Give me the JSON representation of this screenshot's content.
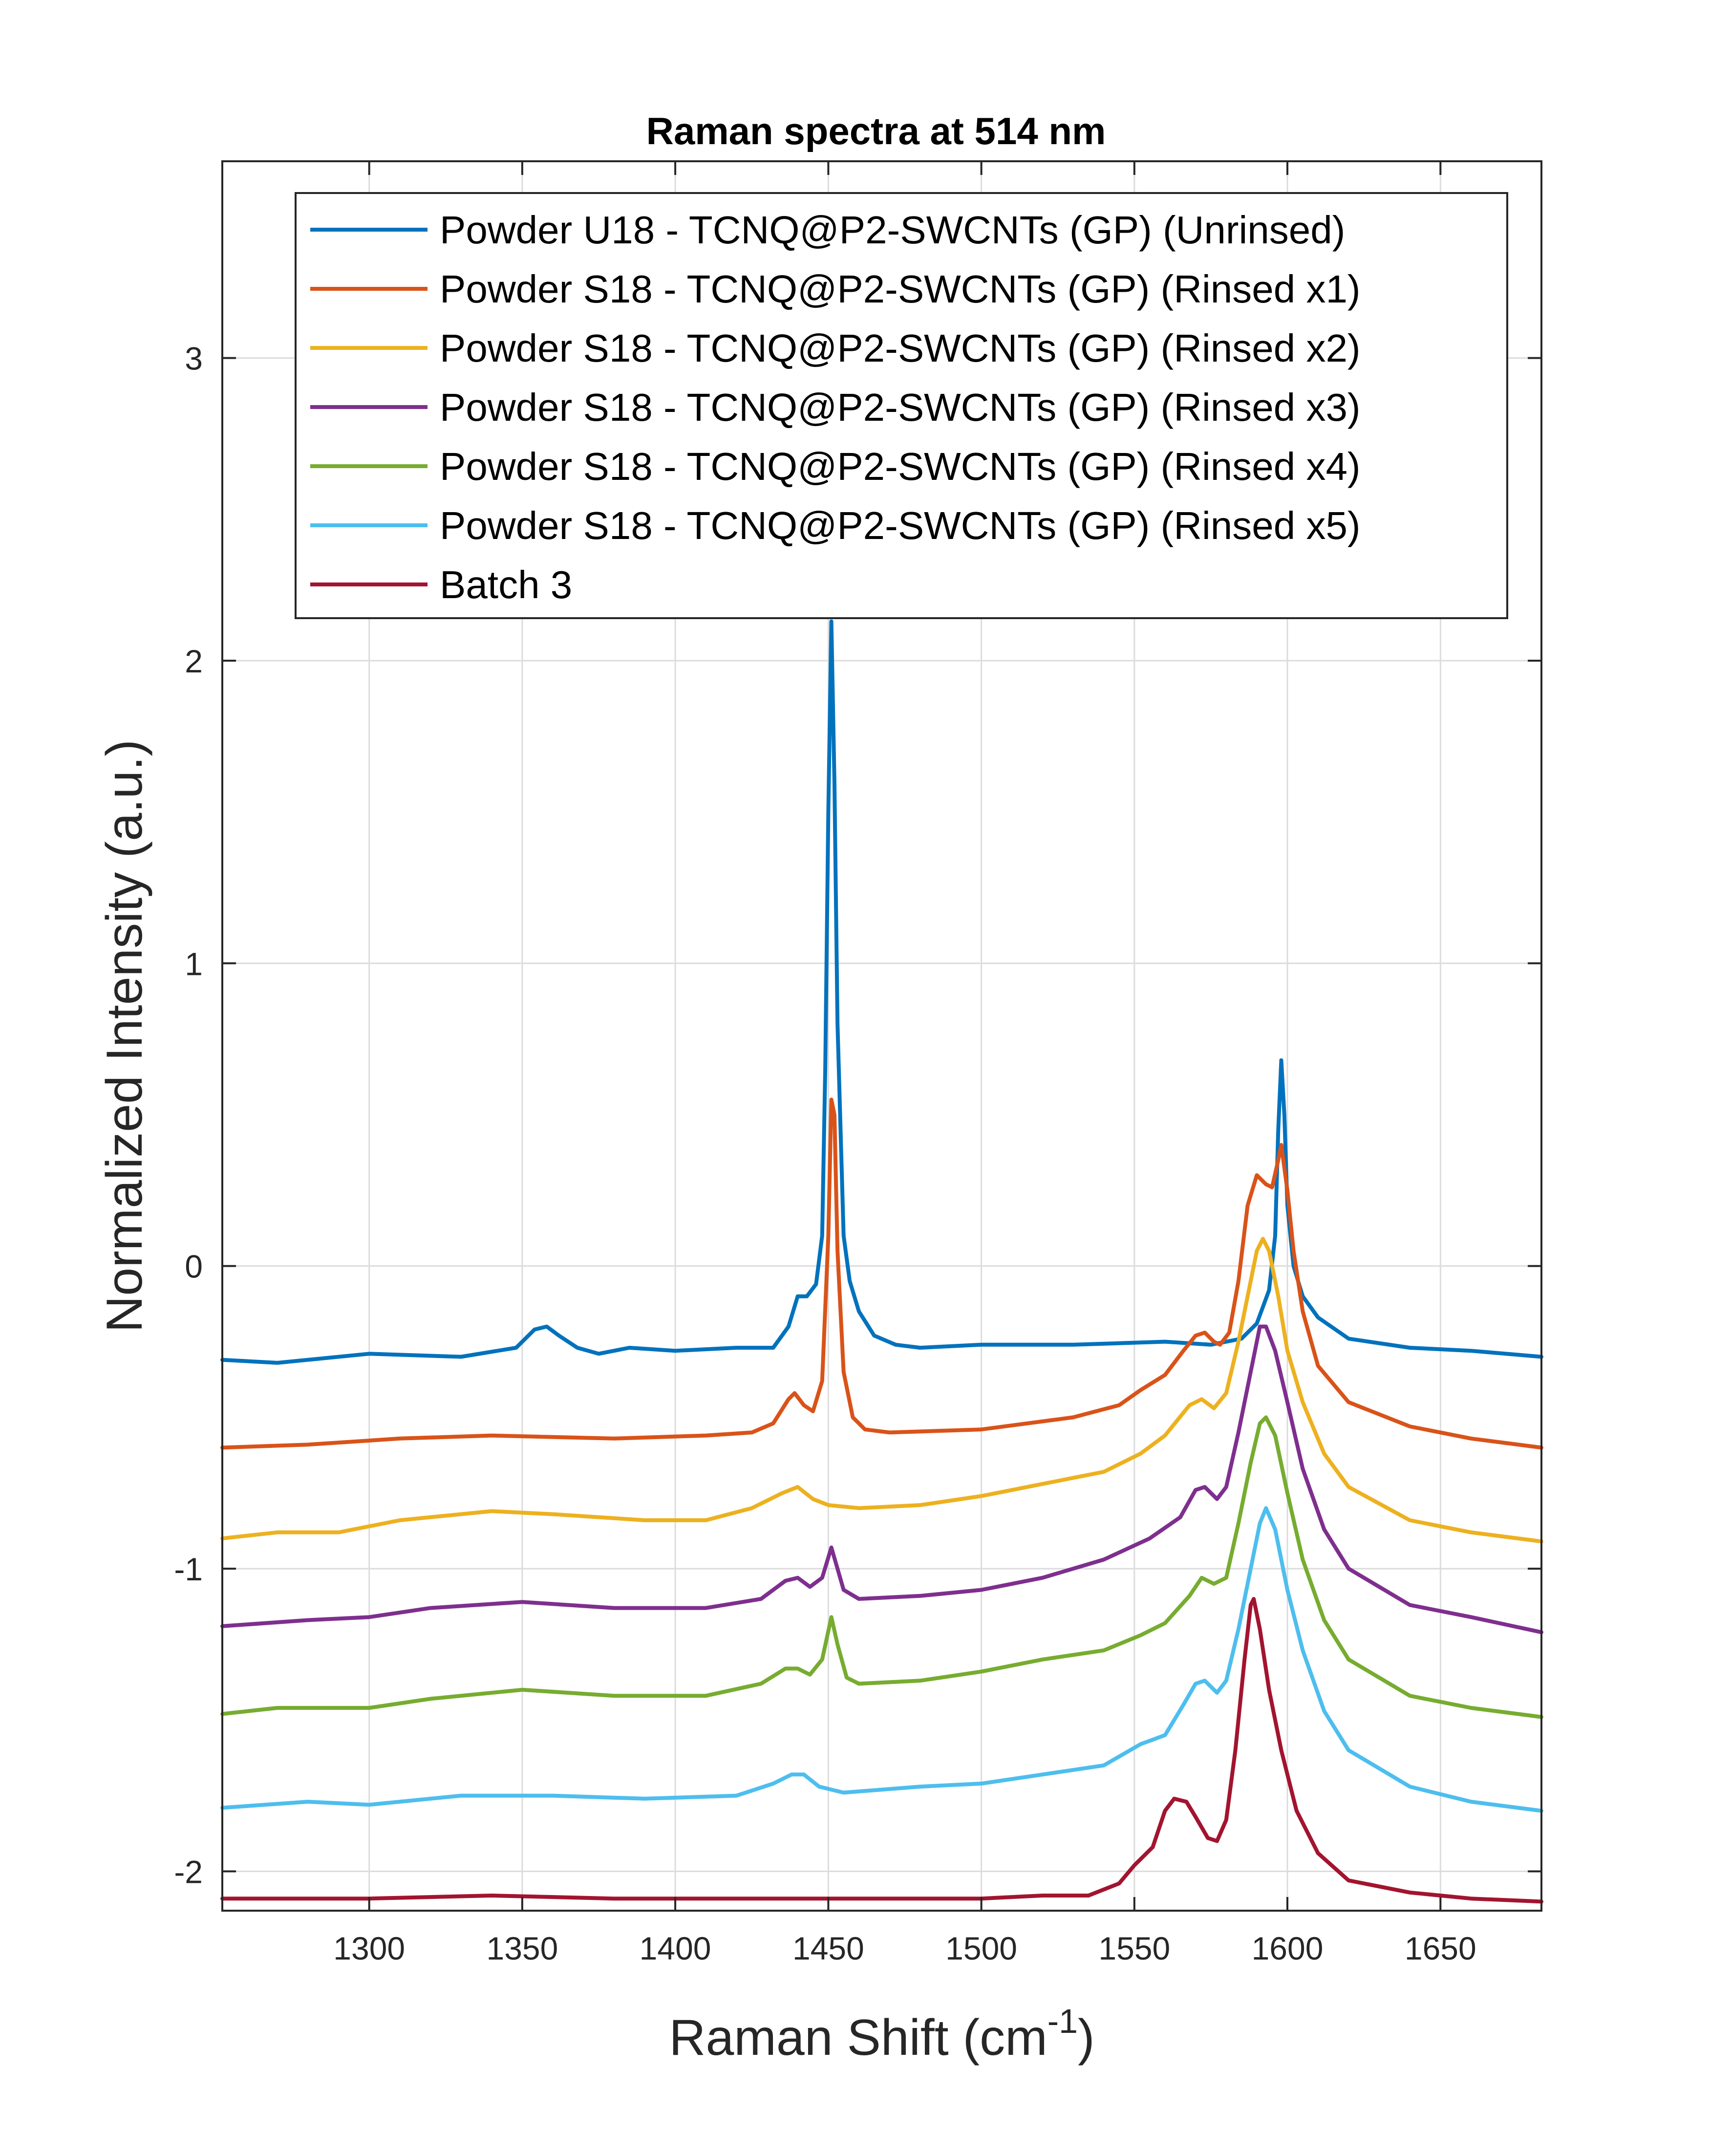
{
  "chart_data": {
    "type": "line",
    "title": "Raman spectra at 514 nm",
    "xlabel": "Raman Shift (cm",
    "xlabel_sup": "-1",
    "xlabel_end": ")",
    "ylabel": "Normalized Intensity (a.u.)",
    "xlim": [
      1252,
      1683
    ],
    "ylim": [
      -2.13,
      3.65
    ],
    "xticks": [
      1300,
      1350,
      1400,
      1450,
      1500,
      1550,
      1600,
      1650
    ],
    "xtick_labels": [
      "1300",
      "1350",
      "1400",
      "1450",
      "1500",
      "1550",
      "1600",
      "1650"
    ],
    "yticks": [
      -2,
      -1,
      0,
      1,
      2,
      3
    ],
    "ytick_labels": [
      "-2",
      "-1",
      "0",
      "1",
      "2",
      "3"
    ],
    "grid": true,
    "legend_position": "top-right",
    "series": [
      {
        "name": "Powder U18 - TCNQ@P2-SWCNTs (GP) (Unrinsed)",
        "color": "#0072BD",
        "points": [
          [
            1252,
            -0.31
          ],
          [
            1270,
            -0.32
          ],
          [
            1300,
            -0.29
          ],
          [
            1330,
            -0.3
          ],
          [
            1348,
            -0.27
          ],
          [
            1354,
            -0.21
          ],
          [
            1358,
            -0.2
          ],
          [
            1362,
            -0.23
          ],
          [
            1368,
            -0.27
          ],
          [
            1375,
            -0.29
          ],
          [
            1385,
            -0.27
          ],
          [
            1400,
            -0.28
          ],
          [
            1420,
            -0.27
          ],
          [
            1432,
            -0.27
          ],
          [
            1437,
            -0.2
          ],
          [
            1440,
            -0.1
          ],
          [
            1443,
            -0.1
          ],
          [
            1446,
            -0.06
          ],
          [
            1448,
            0.1
          ],
          [
            1449,
            0.65
          ],
          [
            1450,
            1.5
          ],
          [
            1451,
            2.13
          ],
          [
            1452,
            1.6
          ],
          [
            1453,
            0.8
          ],
          [
            1455,
            0.1
          ],
          [
            1457,
            -0.05
          ],
          [
            1460,
            -0.15
          ],
          [
            1465,
            -0.23
          ],
          [
            1472,
            -0.26
          ],
          [
            1480,
            -0.27
          ],
          [
            1500,
            -0.26
          ],
          [
            1530,
            -0.26
          ],
          [
            1560,
            -0.25
          ],
          [
            1575,
            -0.26
          ],
          [
            1585,
            -0.24
          ],
          [
            1590,
            -0.19
          ],
          [
            1594,
            -0.08
          ],
          [
            1596,
            0.1
          ],
          [
            1597,
            0.45
          ],
          [
            1598,
            0.68
          ],
          [
            1599,
            0.5
          ],
          [
            1600,
            0.2
          ],
          [
            1602,
            0.0
          ],
          [
            1605,
            -0.1
          ],
          [
            1610,
            -0.17
          ],
          [
            1620,
            -0.24
          ],
          [
            1640,
            -0.27
          ],
          [
            1660,
            -0.28
          ],
          [
            1683,
            -0.3
          ]
        ]
      },
      {
        "name": "Powder S18 - TCNQ@P2-SWCNTs (GP) (Rinsed x1)",
        "color": "#D95319",
        "points": [
          [
            1252,
            -0.6
          ],
          [
            1280,
            -0.59
          ],
          [
            1310,
            -0.57
          ],
          [
            1340,
            -0.56
          ],
          [
            1380,
            -0.57
          ],
          [
            1410,
            -0.56
          ],
          [
            1425,
            -0.55
          ],
          [
            1432,
            -0.52
          ],
          [
            1437,
            -0.44
          ],
          [
            1439,
            -0.42
          ],
          [
            1442,
            -0.46
          ],
          [
            1445,
            -0.48
          ],
          [
            1448,
            -0.38
          ],
          [
            1450,
            0.1
          ],
          [
            1451,
            0.55
          ],
          [
            1452,
            0.5
          ],
          [
            1453,
            0.05
          ],
          [
            1455,
            -0.35
          ],
          [
            1458,
            -0.5
          ],
          [
            1462,
            -0.54
          ],
          [
            1470,
            -0.55
          ],
          [
            1500,
            -0.54
          ],
          [
            1530,
            -0.5
          ],
          [
            1545,
            -0.46
          ],
          [
            1552,
            -0.41
          ],
          [
            1560,
            -0.36
          ],
          [
            1566,
            -0.28
          ],
          [
            1570,
            -0.23
          ],
          [
            1573,
            -0.22
          ],
          [
            1576,
            -0.25
          ],
          [
            1578,
            -0.26
          ],
          [
            1581,
            -0.22
          ],
          [
            1584,
            -0.05
          ],
          [
            1587,
            0.2
          ],
          [
            1590,
            0.3
          ],
          [
            1593,
            0.27
          ],
          [
            1595,
            0.26
          ],
          [
            1597,
            0.35
          ],
          [
            1598,
            0.4
          ],
          [
            1600,
            0.25
          ],
          [
            1602,
            0.05
          ],
          [
            1605,
            -0.15
          ],
          [
            1610,
            -0.33
          ],
          [
            1620,
            -0.45
          ],
          [
            1640,
            -0.53
          ],
          [
            1660,
            -0.57
          ],
          [
            1683,
            -0.6
          ]
        ]
      },
      {
        "name": "Powder S18 - TCNQ@P2-SWCNTs (GP) (Rinsed x2)",
        "color": "#EDB120",
        "points": [
          [
            1252,
            -0.9
          ],
          [
            1270,
            -0.88
          ],
          [
            1290,
            -0.88
          ],
          [
            1310,
            -0.84
          ],
          [
            1340,
            -0.81
          ],
          [
            1360,
            -0.82
          ],
          [
            1390,
            -0.84
          ],
          [
            1410,
            -0.84
          ],
          [
            1425,
            -0.8
          ],
          [
            1435,
            -0.75
          ],
          [
            1440,
            -0.73
          ],
          [
            1445,
            -0.77
          ],
          [
            1450,
            -0.79
          ],
          [
            1460,
            -0.8
          ],
          [
            1480,
            -0.79
          ],
          [
            1500,
            -0.76
          ],
          [
            1520,
            -0.72
          ],
          [
            1540,
            -0.68
          ],
          [
            1552,
            -0.62
          ],
          [
            1560,
            -0.56
          ],
          [
            1568,
            -0.46
          ],
          [
            1572,
            -0.44
          ],
          [
            1576,
            -0.47
          ],
          [
            1580,
            -0.42
          ],
          [
            1584,
            -0.25
          ],
          [
            1587,
            -0.1
          ],
          [
            1590,
            0.05
          ],
          [
            1592,
            0.09
          ],
          [
            1594,
            0.05
          ],
          [
            1597,
            -0.1
          ],
          [
            1600,
            -0.28
          ],
          [
            1605,
            -0.45
          ],
          [
            1612,
            -0.62
          ],
          [
            1620,
            -0.73
          ],
          [
            1640,
            -0.84
          ],
          [
            1660,
            -0.88
          ],
          [
            1683,
            -0.91
          ]
        ]
      },
      {
        "name": "Powder S18 - TCNQ@P2-SWCNTs (GP) (Rinsed x3)",
        "color": "#7E2F8E",
        "points": [
          [
            1252,
            -1.19
          ],
          [
            1280,
            -1.17
          ],
          [
            1300,
            -1.16
          ],
          [
            1320,
            -1.13
          ],
          [
            1350,
            -1.11
          ],
          [
            1380,
            -1.13
          ],
          [
            1410,
            -1.13
          ],
          [
            1428,
            -1.1
          ],
          [
            1436,
            -1.04
          ],
          [
            1440,
            -1.03
          ],
          [
            1444,
            -1.06
          ],
          [
            1448,
            -1.03
          ],
          [
            1451,
            -0.93
          ],
          [
            1453,
            -1.0
          ],
          [
            1455,
            -1.07
          ],
          [
            1460,
            -1.1
          ],
          [
            1480,
            -1.09
          ],
          [
            1500,
            -1.07
          ],
          [
            1520,
            -1.03
          ],
          [
            1540,
            -0.97
          ],
          [
            1555,
            -0.9
          ],
          [
            1565,
            -0.83
          ],
          [
            1570,
            -0.74
          ],
          [
            1573,
            -0.73
          ],
          [
            1577,
            -0.77
          ],
          [
            1580,
            -0.73
          ],
          [
            1584,
            -0.55
          ],
          [
            1588,
            -0.35
          ],
          [
            1591,
            -0.2
          ],
          [
            1593,
            -0.2
          ],
          [
            1596,
            -0.28
          ],
          [
            1600,
            -0.45
          ],
          [
            1605,
            -0.67
          ],
          [
            1612,
            -0.87
          ],
          [
            1620,
            -1.0
          ],
          [
            1640,
            -1.12
          ],
          [
            1660,
            -1.16
          ],
          [
            1683,
            -1.21
          ]
        ]
      },
      {
        "name": "Powder S18 - TCNQ@P2-SWCNTs (GP) (Rinsed x4)",
        "color": "#77AC30",
        "points": [
          [
            1252,
            -1.48
          ],
          [
            1270,
            -1.46
          ],
          [
            1300,
            -1.46
          ],
          [
            1320,
            -1.43
          ],
          [
            1350,
            -1.4
          ],
          [
            1380,
            -1.42
          ],
          [
            1410,
            -1.42
          ],
          [
            1428,
            -1.38
          ],
          [
            1436,
            -1.33
          ],
          [
            1440,
            -1.33
          ],
          [
            1444,
            -1.35
          ],
          [
            1448,
            -1.3
          ],
          [
            1451,
            -1.16
          ],
          [
            1453,
            -1.25
          ],
          [
            1456,
            -1.36
          ],
          [
            1460,
            -1.38
          ],
          [
            1480,
            -1.37
          ],
          [
            1500,
            -1.34
          ],
          [
            1520,
            -1.3
          ],
          [
            1540,
            -1.27
          ],
          [
            1552,
            -1.22
          ],
          [
            1560,
            -1.18
          ],
          [
            1568,
            -1.09
          ],
          [
            1572,
            -1.03
          ],
          [
            1576,
            -1.05
          ],
          [
            1580,
            -1.03
          ],
          [
            1584,
            -0.85
          ],
          [
            1588,
            -0.65
          ],
          [
            1591,
            -0.52
          ],
          [
            1593,
            -0.5
          ],
          [
            1596,
            -0.56
          ],
          [
            1600,
            -0.75
          ],
          [
            1605,
            -0.97
          ],
          [
            1612,
            -1.17
          ],
          [
            1620,
            -1.3
          ],
          [
            1640,
            -1.42
          ],
          [
            1660,
            -1.46
          ],
          [
            1683,
            -1.49
          ]
        ]
      },
      {
        "name": "Powder S18 - TCNQ@P2-SWCNTs (GP) (Rinsed x5)",
        "color": "#4DBEEE",
        "points": [
          [
            1252,
            -1.79
          ],
          [
            1280,
            -1.77
          ],
          [
            1300,
            -1.78
          ],
          [
            1330,
            -1.75
          ],
          [
            1360,
            -1.75
          ],
          [
            1390,
            -1.76
          ],
          [
            1420,
            -1.75
          ],
          [
            1432,
            -1.71
          ],
          [
            1438,
            -1.68
          ],
          [
            1442,
            -1.68
          ],
          [
            1447,
            -1.72
          ],
          [
            1455,
            -1.74
          ],
          [
            1480,
            -1.72
          ],
          [
            1500,
            -1.71
          ],
          [
            1520,
            -1.68
          ],
          [
            1540,
            -1.65
          ],
          [
            1552,
            -1.58
          ],
          [
            1560,
            -1.55
          ],
          [
            1566,
            -1.45
          ],
          [
            1570,
            -1.38
          ],
          [
            1573,
            -1.37
          ],
          [
            1577,
            -1.41
          ],
          [
            1580,
            -1.37
          ],
          [
            1584,
            -1.2
          ],
          [
            1588,
            -1.0
          ],
          [
            1591,
            -0.85
          ],
          [
            1593,
            -0.8
          ],
          [
            1596,
            -0.87
          ],
          [
            1600,
            -1.07
          ],
          [
            1605,
            -1.27
          ],
          [
            1612,
            -1.47
          ],
          [
            1620,
            -1.6
          ],
          [
            1640,
            -1.72
          ],
          [
            1660,
            -1.77
          ],
          [
            1683,
            -1.8
          ]
        ]
      },
      {
        "name": "Batch 3",
        "color": "#A2142F",
        "points": [
          [
            1252,
            -2.09
          ],
          [
            1300,
            -2.09
          ],
          [
            1340,
            -2.08
          ],
          [
            1380,
            -2.09
          ],
          [
            1450,
            -2.09
          ],
          [
            1500,
            -2.09
          ],
          [
            1520,
            -2.08
          ],
          [
            1535,
            -2.08
          ],
          [
            1545,
            -2.04
          ],
          [
            1550,
            -1.98
          ],
          [
            1556,
            -1.92
          ],
          [
            1560,
            -1.8
          ],
          [
            1563,
            -1.76
          ],
          [
            1567,
            -1.77
          ],
          [
            1570,
            -1.82
          ],
          [
            1574,
            -1.89
          ],
          [
            1577,
            -1.9
          ],
          [
            1580,
            -1.83
          ],
          [
            1583,
            -1.6
          ],
          [
            1586,
            -1.3
          ],
          [
            1588,
            -1.12
          ],
          [
            1589,
            -1.1
          ],
          [
            1591,
            -1.2
          ],
          [
            1594,
            -1.4
          ],
          [
            1598,
            -1.6
          ],
          [
            1603,
            -1.8
          ],
          [
            1610,
            -1.94
          ],
          [
            1620,
            -2.03
          ],
          [
            1640,
            -2.07
          ],
          [
            1660,
            -2.09
          ],
          [
            1683,
            -2.1
          ]
        ]
      }
    ]
  }
}
